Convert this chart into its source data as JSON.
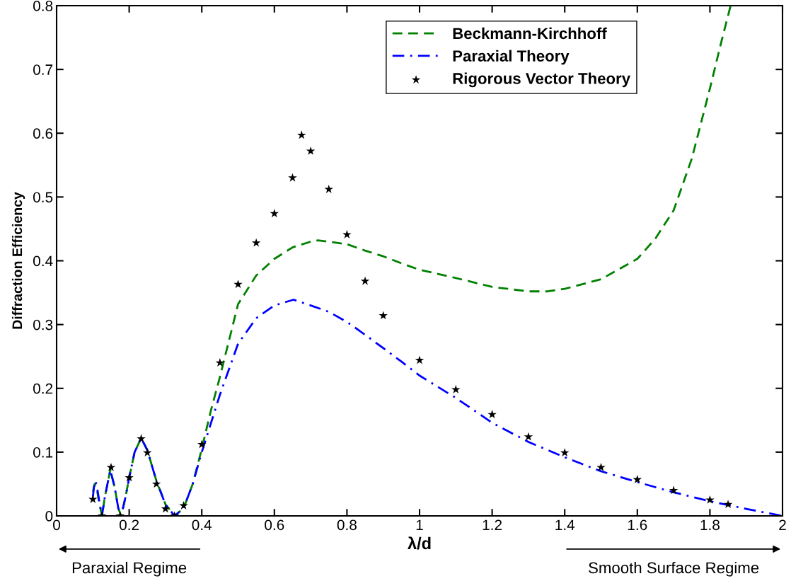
{
  "chart_data": {
    "type": "line",
    "xlabel": "λ/d",
    "ylabel": "Diffraction Efficiency",
    "xlim": [
      0,
      2
    ],
    "ylim": [
      0,
      0.8
    ],
    "xticks": [
      0,
      0.2,
      0.4,
      0.6,
      0.8,
      1,
      1.2,
      1.4,
      1.6,
      1.8,
      2
    ],
    "yticks": [
      0,
      0.1,
      0.2,
      0.3,
      0.4,
      0.5,
      0.6,
      0.7,
      0.8
    ],
    "grid": false,
    "legend": "top right",
    "annotations": [
      "Paraxial Regime",
      "Smooth Surface Regime"
    ],
    "series": [
      {
        "name": "Beckmann-Kirchhoff",
        "color": "#008000",
        "line_style": "dashed",
        "marker": "none",
        "x": [
          0.1,
          0.105,
          0.11,
          0.117,
          0.125,
          0.133,
          0.148,
          0.16,
          0.17,
          0.178,
          0.19,
          0.2,
          0.215,
          0.233,
          0.25,
          0.275,
          0.3,
          0.325,
          0.35,
          0.375,
          0.4,
          0.425,
          0.45,
          0.5,
          0.55,
          0.6,
          0.65,
          0.7,
          0.72,
          0.75,
          0.8,
          0.85,
          0.9,
          0.95,
          1.0,
          1.1,
          1.2,
          1.3,
          1.35,
          1.4,
          1.5,
          1.6,
          1.65,
          1.7,
          1.75,
          1.8,
          1.83,
          1.857
        ],
        "values": [
          0.038,
          0.05,
          0.045,
          0.022,
          0.0,
          0.03,
          0.072,
          0.045,
          0.012,
          0.0,
          0.03,
          0.06,
          0.1,
          0.122,
          0.103,
          0.055,
          0.018,
          0.0,
          0.012,
          0.05,
          0.105,
          0.165,
          0.218,
          0.332,
          0.377,
          0.403,
          0.421,
          0.43,
          0.432,
          0.43,
          0.426,
          0.416,
          0.407,
          0.396,
          0.386,
          0.373,
          0.359,
          0.352,
          0.352,
          0.356,
          0.371,
          0.403,
          0.435,
          0.479,
          0.56,
          0.67,
          0.74,
          0.8
        ]
      },
      {
        "name": "Paraxial Theory",
        "color": "#0000ff",
        "line_style": "dashdot",
        "marker": "none",
        "x": [
          0.1,
          0.105,
          0.11,
          0.117,
          0.125,
          0.133,
          0.148,
          0.16,
          0.17,
          0.178,
          0.19,
          0.2,
          0.215,
          0.233,
          0.25,
          0.275,
          0.3,
          0.325,
          0.35,
          0.375,
          0.4,
          0.45,
          0.5,
          0.55,
          0.6,
          0.653,
          0.7,
          0.75,
          0.8,
          0.85,
          0.9,
          0.95,
          1.0,
          1.1,
          1.2,
          1.3,
          1.4,
          1.5,
          1.6,
          1.7,
          1.8,
          1.9,
          2.0
        ],
        "values": [
          0.03,
          0.055,
          0.05,
          0.025,
          0.0,
          0.03,
          0.072,
          0.045,
          0.012,
          0.0,
          0.03,
          0.06,
          0.1,
          0.122,
          0.103,
          0.055,
          0.018,
          0.0,
          0.012,
          0.05,
          0.1,
          0.19,
          0.27,
          0.31,
          0.33,
          0.339,
          0.33,
          0.32,
          0.304,
          0.284,
          0.263,
          0.242,
          0.22,
          0.185,
          0.146,
          0.116,
          0.092,
          0.07,
          0.053,
          0.037,
          0.023,
          0.011,
          0.0
        ]
      },
      {
        "name": "Rigorous Vector Theory",
        "type": "scatter",
        "color": "#000000",
        "marker": "star",
        "x": [
          0.1,
          0.125,
          0.15,
          0.175,
          0.2,
          0.233,
          0.25,
          0.275,
          0.3,
          0.325,
          0.35,
          0.4,
          0.45,
          0.5,
          0.55,
          0.6,
          0.65,
          0.675,
          0.7,
          0.75,
          0.8,
          0.85,
          0.9,
          1.0,
          1.1,
          1.2,
          1.3,
          1.4,
          1.5,
          1.6,
          1.7,
          1.8,
          1.85
        ],
        "values": [
          0.026,
          0.0,
          0.076,
          0.0,
          0.06,
          0.121,
          0.099,
          0.05,
          0.011,
          0.0,
          0.016,
          0.112,
          0.24,
          0.363,
          0.428,
          0.474,
          0.53,
          0.597,
          0.572,
          0.512,
          0.441,
          0.368,
          0.314,
          0.244,
          0.198,
          0.159,
          0.124,
          0.099,
          0.076,
          0.057,
          0.04,
          0.025,
          0.018
        ]
      }
    ]
  }
}
